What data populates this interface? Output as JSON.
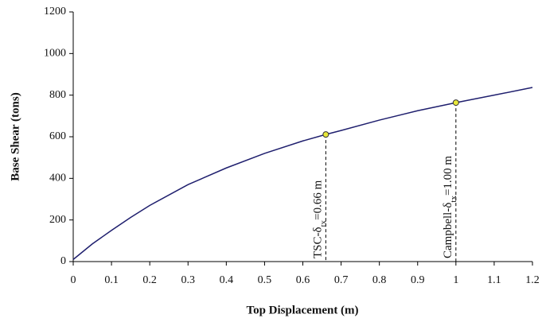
{
  "chart_data": {
    "type": "line",
    "x_label": "Top Displacement (m)",
    "y_label": "Base Shear (tons)",
    "x": [
      0,
      0.05,
      0.1,
      0.15,
      0.2,
      0.3,
      0.4,
      0.5,
      0.6,
      0.66,
      0.7,
      0.8,
      0.9,
      1.0,
      1.1,
      1.2
    ],
    "series": [
      {
        "color": "#1f1f6e",
        "values": [
          10,
          85,
          150,
          212,
          270,
          370,
          450,
          520,
          580,
          611,
          630,
          680,
          725,
          764,
          800,
          837
        ]
      }
    ],
    "annotations": [
      {
        "x": 0.66,
        "y": 611,
        "text_parts": [
          "TSC-δ",
          "tx",
          "=0.66 m"
        ]
      },
      {
        "x": 1.0,
        "y": 764,
        "text_parts": [
          "Campbell-δ",
          "tx",
          "=1.00 m"
        ]
      }
    ],
    "marker_color": "#e8e83a",
    "xlim": [
      0,
      1.2
    ],
    "ylim": [
      0,
      1200
    ],
    "xticks": [
      0,
      0.1,
      0.2,
      0.3,
      0.4,
      0.5,
      0.6,
      0.7,
      0.8,
      0.9,
      1,
      1.1,
      1.2
    ],
    "yticks": [
      0,
      200,
      400,
      600,
      800,
      1000,
      1200
    ]
  }
}
